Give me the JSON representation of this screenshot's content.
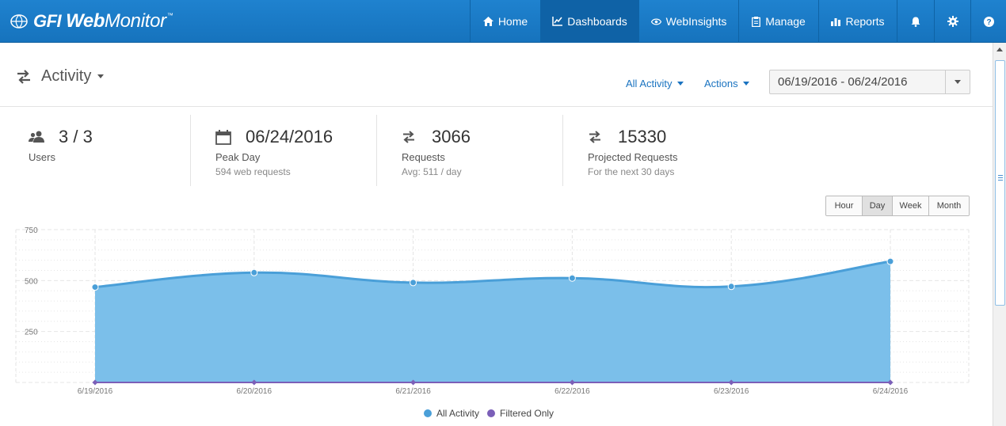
{
  "brand": {
    "name_a": "GFI",
    "name_b": "Web",
    "name_c": "Monitor",
    "tm": "™"
  },
  "nav": {
    "home": "Home",
    "dashboards": "Dashboards",
    "webinsights": "WebInsights",
    "manage": "Manage",
    "reports": "Reports",
    "active": "dashboards"
  },
  "header": {
    "title": "Activity",
    "filter_label": "All Activity",
    "actions_label": "Actions",
    "date_range": "06/19/2016 - 06/24/2016"
  },
  "stats": {
    "users": {
      "value": "3 / 3",
      "label": "Users",
      "sub": ""
    },
    "peak": {
      "value": "06/24/2016",
      "label": "Peak Day",
      "sub": "594 web requests"
    },
    "requests": {
      "value": "3066",
      "label": "Requests",
      "sub": "Avg: 511 / day"
    },
    "projected": {
      "value": "15330",
      "label": "Projected Requests",
      "sub": "For the next 30 days"
    }
  },
  "granularity": {
    "options": [
      "Hour",
      "Day",
      "Week",
      "Month"
    ],
    "selected": "Day"
  },
  "colors": {
    "nav_bg": "#1978c8",
    "accent": "#1a73c0",
    "area": "#7bbfea",
    "line": "#4a9fd8",
    "filtered": "#7b5fb8"
  },
  "chart_data": {
    "type": "area",
    "categories": [
      "6/19/2016",
      "6/20/2016",
      "6/21/2016",
      "6/22/2016",
      "6/23/2016",
      "6/24/2016"
    ],
    "series": [
      {
        "name": "All Activity",
        "values": [
          468,
          539,
          490,
          512,
          471,
          594
        ]
      },
      {
        "name": "Filtered Only",
        "values": [
          0,
          0,
          0,
          0,
          0,
          0
        ]
      }
    ],
    "ylim": [
      0,
      750
    ],
    "yticks": [
      250,
      500,
      750
    ],
    "grid": true,
    "legend": "bottom-center"
  }
}
